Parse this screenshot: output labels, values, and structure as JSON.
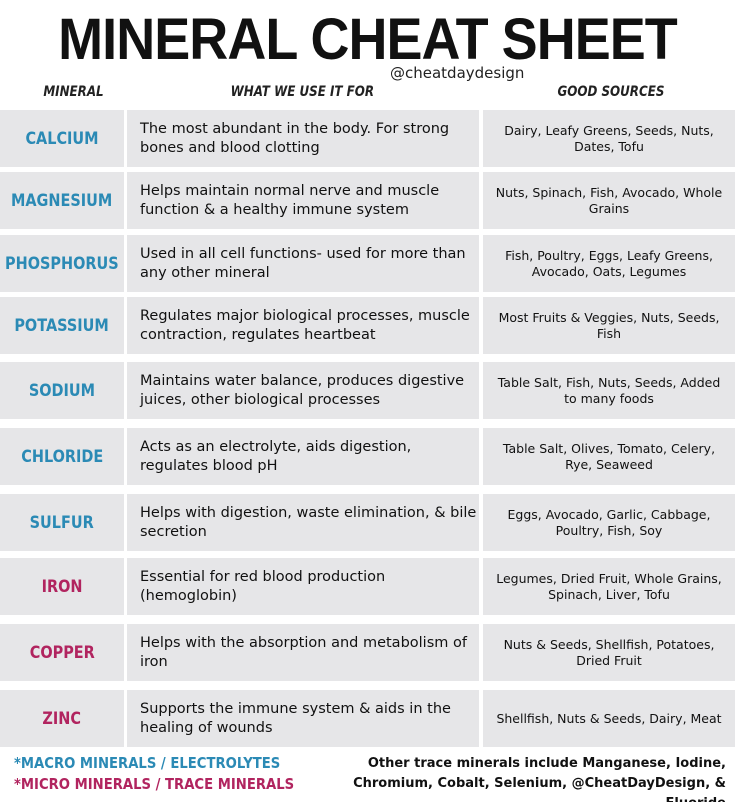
{
  "header": {
    "title": "MINERAL CHEAT SHEET",
    "handle": "@cheatdaydesign"
  },
  "table": {
    "columns": [
      "MINERAL",
      "WHAT WE USE IT FOR",
      "GOOD SOURCES"
    ],
    "rows": [
      {
        "mineral": "CALCIUM",
        "use": "The most abundant in the body. For strong bones and blood clotting",
        "sources": "Dairy, Leafy Greens, Seeds, Nuts, Dates, Tofu",
        "color": "#2b8ab5"
      },
      {
        "mineral": "MAGNESIUM",
        "use": "Helps maintain normal nerve and muscle function & a healthy immune system",
        "sources": "Nuts, Spinach, Fish, Avocado, Whole Grains",
        "color": "#2b8ab5"
      },
      {
        "mineral": "PHOSPHORUS",
        "use": "Used in all cell functions- used for more than any other mineral",
        "sources": "Fish, Poultry, Eggs, Leafy Greens, Avocado, Oats, Legumes",
        "color": "#2b8ab5"
      },
      {
        "mineral": "POTASSIUM",
        "use": "Regulates major biological processes, muscle contraction, regulates heartbeat",
        "sources": "Most Fruits & Veggies, Nuts, Seeds, Fish",
        "color": "#2b8ab5"
      },
      {
        "mineral": "SODIUM",
        "use": "Maintains water balance, produces digestive juices, other biological processes",
        "sources": "Table Salt, Fish, Nuts, Seeds, Added to many foods",
        "color": "#2b8ab5"
      },
      {
        "mineral": "CHLORIDE",
        "use": "Acts as an electrolyte, aids digestion, regulates blood pH",
        "sources": "Table Salt, Olives, Tomato, Celery, Rye, Seaweed",
        "color": "#2b8ab5"
      },
      {
        "mineral": "SULFUR",
        "use": "Helps with digestion, waste elimination, & bile secretion",
        "sources": "Eggs, Avocado, Garlic, Cabbage, Poultry, Fish, Soy",
        "color": "#2b8ab5"
      },
      {
        "mineral": "IRON",
        "use": "Essential for red blood production (hemoglobin)",
        "sources": "Legumes, Dried Fruit, Whole Grains, Spinach, Liver, Tofu",
        "color": "#b1245f"
      },
      {
        "mineral": "COPPER",
        "use": "Helps with the absorption and metabolism of iron",
        "sources": "Nuts & Seeds, Shellfish, Potatoes, Dried Fruit",
        "color": "#b1245f"
      },
      {
        "mineral": "ZINC",
        "use": "Supports the immune system & aids in the healing of wounds",
        "sources": "Shellfish, Nuts & Seeds, Dairy, Meat",
        "color": "#b1245f"
      }
    ]
  },
  "legend": [
    {
      "text": "*MACRO MINERALS / ELECTROLYTES",
      "color": "#2b8ab5"
    },
    {
      "text": "*MICRO MINERALS / TRACE MINERALS",
      "color": "#b1245f"
    }
  ],
  "footnote": "Other trace minerals include Manganese, Iodine, Chromium, Cobalt, Selenium, @CheatDayDesign, & Fluoride"
}
